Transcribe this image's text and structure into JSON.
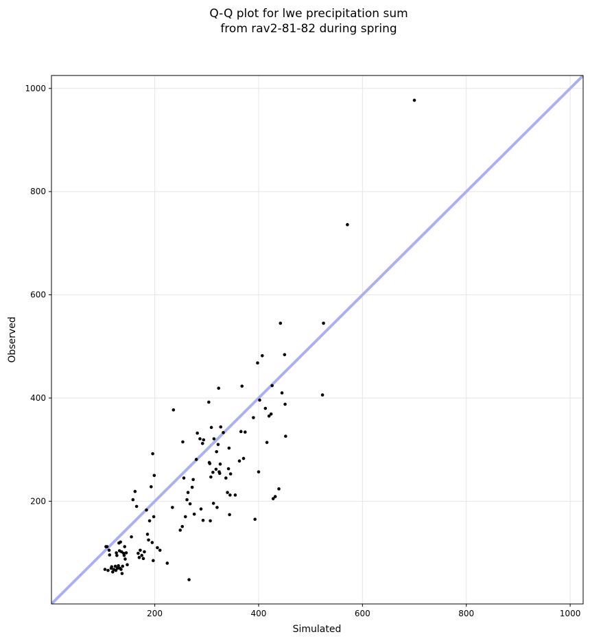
{
  "chart_data": {
    "type": "scatter",
    "title": [
      "Q-Q plot for lwe precipitation sum",
      "from rav2-81-82 during spring"
    ],
    "xlabel": "Simulated",
    "ylabel": "Observed",
    "xlim": [
      1,
      1025
    ],
    "ylim": [
      1,
      1025
    ],
    "xticks": [
      200,
      400,
      600,
      800,
      1000
    ],
    "yticks": [
      200,
      400,
      600,
      800,
      1000
    ],
    "grid": true,
    "reference_line": {
      "from": [
        1,
        1
      ],
      "to": [
        1025,
        1025
      ],
      "color": "#aab0f5"
    },
    "point_color": "#000000",
    "points": [
      [
        104,
        68
      ],
      [
        106,
        112
      ],
      [
        108,
        112
      ],
      [
        110,
        66
      ],
      [
        112,
        105
      ],
      [
        113,
        96
      ],
      [
        116,
        70
      ],
      [
        117,
        73
      ],
      [
        119,
        63
      ],
      [
        121,
        68
      ],
      [
        124,
        74
      ],
      [
        125,
        66
      ],
      [
        126,
        100
      ],
      [
        127,
        95
      ],
      [
        128,
        70
      ],
      [
        130,
        75
      ],
      [
        131,
        119
      ],
      [
        132,
        104
      ],
      [
        133,
        70
      ],
      [
        134,
        121
      ],
      [
        135,
        68
      ],
      [
        136,
        102
      ],
      [
        137,
        60
      ],
      [
        138,
        74
      ],
      [
        140,
        99
      ],
      [
        141,
        95
      ],
      [
        142,
        112
      ],
      [
        143,
        88
      ],
      [
        145,
        100
      ],
      [
        147,
        77
      ],
      [
        155,
        131
      ],
      [
        158,
        203
      ],
      [
        162,
        219
      ],
      [
        165,
        190
      ],
      [
        168,
        99
      ],
      [
        170,
        91
      ],
      [
        172,
        105
      ],
      [
        175,
        95
      ],
      [
        178,
        89
      ],
      [
        180,
        102
      ],
      [
        184,
        183
      ],
      [
        186,
        136
      ],
      [
        188,
        125
      ],
      [
        190,
        162
      ],
      [
        193,
        228
      ],
      [
        195,
        120
      ],
      [
        196,
        292
      ],
      [
        197,
        85
      ],
      [
        198,
        170
      ],
      [
        199,
        250
      ],
      [
        205,
        110
      ],
      [
        210,
        105
      ],
      [
        224,
        80
      ],
      [
        234,
        188
      ],
      [
        236,
        377
      ],
      [
        249,
        144
      ],
      [
        253,
        151
      ],
      [
        254,
        315
      ],
      [
        256,
        245
      ],
      [
        259,
        170
      ],
      [
        262,
        203
      ],
      [
        264,
        217
      ],
      [
        266,
        48
      ],
      [
        268,
        195
      ],
      [
        272,
        227
      ],
      [
        274,
        242
      ],
      [
        276,
        175
      ],
      [
        280,
        281
      ],
      [
        282,
        332
      ],
      [
        287,
        321
      ],
      [
        289,
        185
      ],
      [
        292,
        312
      ],
      [
        293,
        163
      ],
      [
        294,
        319
      ],
      [
        304,
        392
      ],
      [
        305,
        275
      ],
      [
        306,
        273
      ],
      [
        307,
        162
      ],
      [
        308,
        247
      ],
      [
        309,
        343
      ],
      [
        312,
        256
      ],
      [
        313,
        196
      ],
      [
        314,
        321
      ],
      [
        318,
        262
      ],
      [
        319,
        296
      ],
      [
        320,
        188
      ],
      [
        322,
        310
      ],
      [
        323,
        419
      ],
      [
        324,
        257
      ],
      [
        325,
        254
      ],
      [
        326,
        272
      ],
      [
        327,
        344
      ],
      [
        332,
        333
      ],
      [
        337,
        245
      ],
      [
        340,
        217
      ],
      [
        342,
        263
      ],
      [
        343,
        303
      ],
      [
        344,
        174
      ],
      [
        345,
        212
      ],
      [
        346,
        253
      ],
      [
        355,
        212
      ],
      [
        363,
        278
      ],
      [
        366,
        335
      ],
      [
        368,
        423
      ],
      [
        371,
        283
      ],
      [
        374,
        334
      ],
      [
        390,
        362
      ],
      [
        393,
        165
      ],
      [
        398,
        468
      ],
      [
        400,
        257
      ],
      [
        402,
        396
      ],
      [
        407,
        482
      ],
      [
        413,
        380
      ],
      [
        416,
        314
      ],
      [
        420,
        365
      ],
      [
        424,
        369
      ],
      [
        426,
        424
      ],
      [
        428,
        205
      ],
      [
        432,
        209
      ],
      [
        439,
        224
      ],
      [
        442,
        545
      ],
      [
        445,
        410
      ],
      [
        450,
        484
      ],
      [
        451,
        388
      ],
      [
        452,
        326
      ],
      [
        523,
        406
      ],
      [
        525,
        545
      ],
      [
        571,
        736
      ],
      [
        700,
        977
      ]
    ]
  }
}
